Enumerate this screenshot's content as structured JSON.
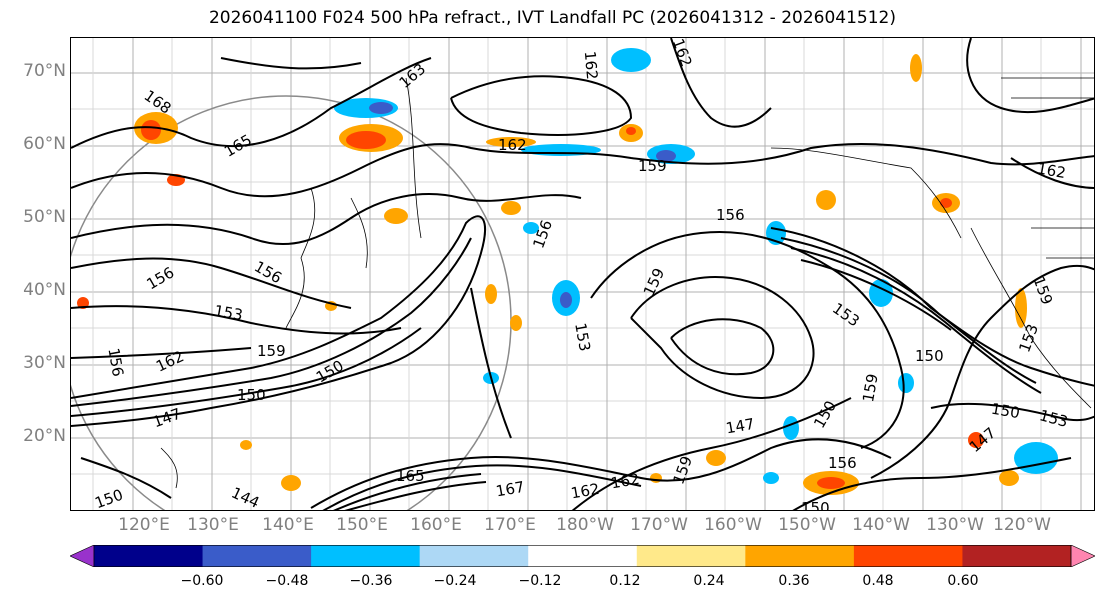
{
  "title": "2026041100 F024 500 hPa refract., IVT Landfall PC (2026041312 - 2026041512)",
  "latitude_labels": [
    "70°N",
    "60°N",
    "50°N",
    "40°N",
    "30°N",
    "20°N"
  ],
  "longitude_labels": [
    "120°E",
    "130°E",
    "140°E",
    "150°E",
    "160°E",
    "170°E",
    "180°W",
    "170°W",
    "160°W",
    "150°W",
    "140°W",
    "130°W",
    "120°W"
  ],
  "contour_labels": [
    "168",
    "165",
    "163",
    "162",
    "159",
    "162",
    "162",
    "156",
    "156",
    "156",
    "156",
    "159",
    "153",
    "159",
    "162",
    "156",
    "153",
    "150",
    "147",
    "144",
    "150",
    "150",
    "147",
    "162",
    "165",
    "167",
    "162",
    "159",
    "150",
    "156",
    "159",
    "153",
    "150",
    "162",
    "153",
    "159",
    "150",
    "153",
    "150",
    "147"
  ],
  "colorbar": {
    "colors": [
      "#9932cc",
      "#00008b",
      "#3a5cc9",
      "#00bfff",
      "#add8f5",
      "#ffffff",
      "#ffe98a",
      "#ffa500",
      "#ff4500",
      "#b22222",
      "#ff85b0"
    ],
    "ticks": [
      "−0.60",
      "−0.48",
      "−0.36",
      "−0.24",
      "−0.12",
      "0.12",
      "0.24",
      "0.36",
      "0.48",
      "0.60"
    ]
  }
}
